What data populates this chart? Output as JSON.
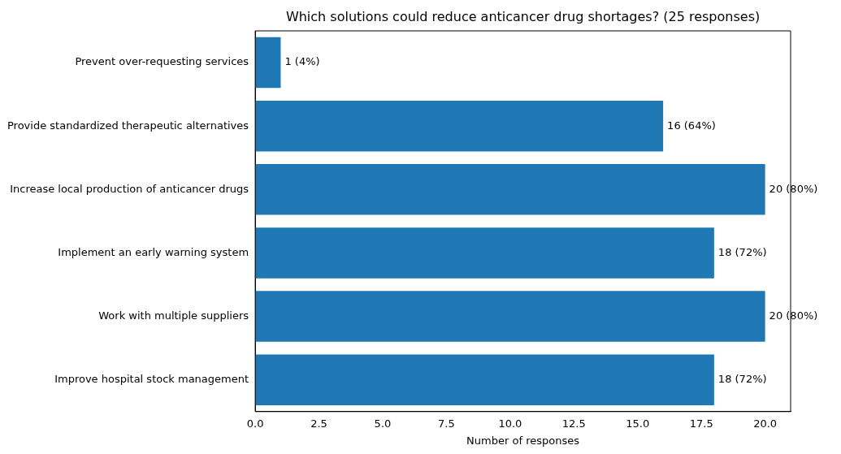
{
  "chart_data": {
    "type": "bar",
    "orientation": "horizontal",
    "title": "Which solutions could reduce anticancer drug shortages? (25 responses)",
    "xlabel": "Number of responses",
    "categories": [
      "Prevent over-requesting services",
      "Provide standardized therapeutic alternatives",
      "Increase local production of anticancer drugs",
      "Implement an early warning system",
      "Work with multiple suppliers",
      "Improve hospital stock management"
    ],
    "values": [
      1,
      16,
      20,
      18,
      20,
      18
    ],
    "value_labels": [
      "1 (4%)",
      "16 (64%)",
      "20 (80%)",
      "18 (72%)",
      "20 (80%)",
      "18 (72%)"
    ],
    "color": "#1f77b4",
    "xlim": [
      0,
      21
    ],
    "xticks": [
      {
        "value": 0,
        "label": "0.0"
      },
      {
        "value": 2.5,
        "label": "2.5"
      },
      {
        "value": 5,
        "label": "5.0"
      },
      {
        "value": 7.5,
        "label": "7.5"
      },
      {
        "value": 10,
        "label": "10.0"
      },
      {
        "value": 12.5,
        "label": "12.5"
      },
      {
        "value": 15,
        "label": "15.0"
      },
      {
        "value": 17.5,
        "label": "17.5"
      },
      {
        "value": 20,
        "label": "20.0"
      }
    ],
    "grid": false,
    "legend": false
  }
}
